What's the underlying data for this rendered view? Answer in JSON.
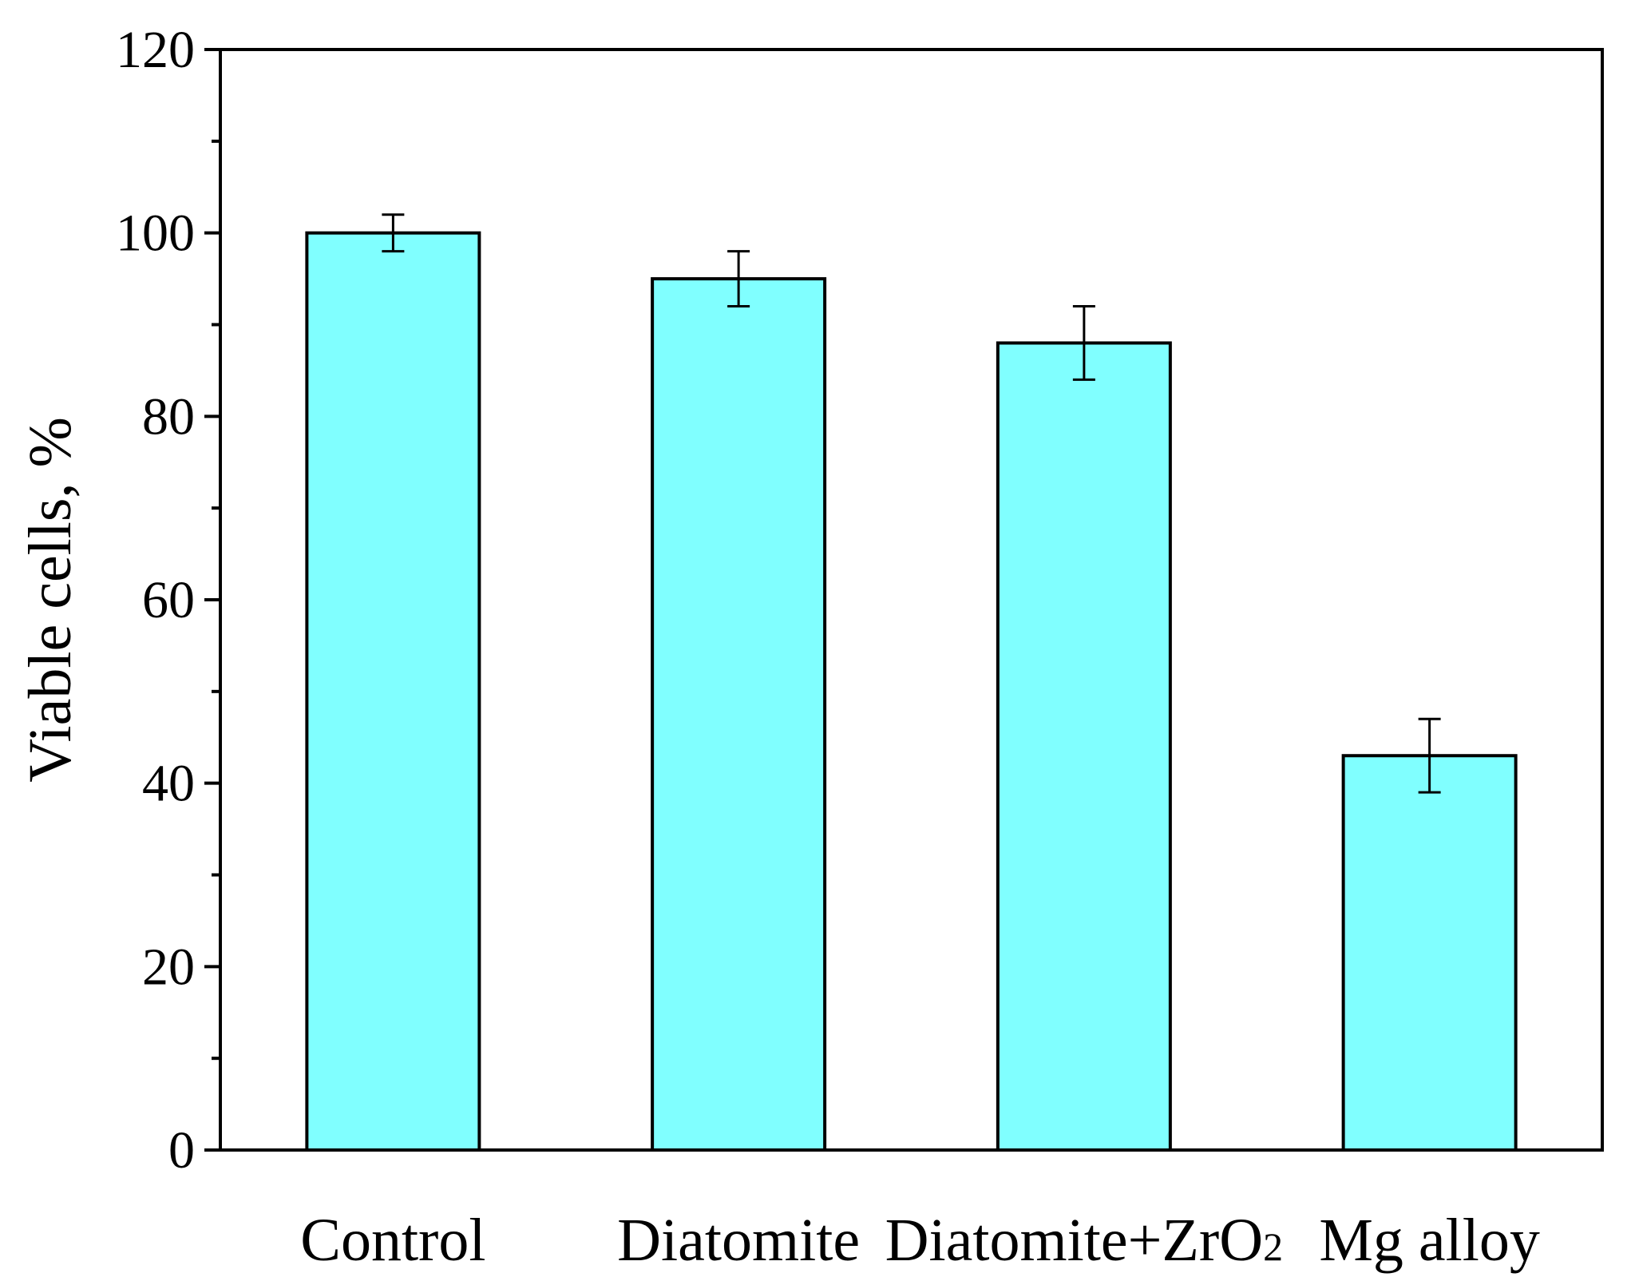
{
  "chart_data": {
    "type": "bar",
    "title": "",
    "xlabel": "",
    "ylabel": "Viable cells, %",
    "ylim": [
      0,
      120
    ],
    "yticks": [
      0,
      20,
      40,
      60,
      80,
      100,
      120
    ],
    "grid": false,
    "categories": [
      {
        "main": "Control",
        "sub": ""
      },
      {
        "main": "Diatomite",
        "sub": ""
      },
      {
        "main": "Diatomite+ZrO",
        "sub": "2"
      },
      {
        "main": "Mg alloy",
        "sub": ""
      }
    ],
    "values": [
      100,
      95,
      88,
      43
    ],
    "errors": [
      2,
      3,
      4,
      4
    ],
    "bar_color": "#80FFFF",
    "edge_color": "#000000"
  }
}
